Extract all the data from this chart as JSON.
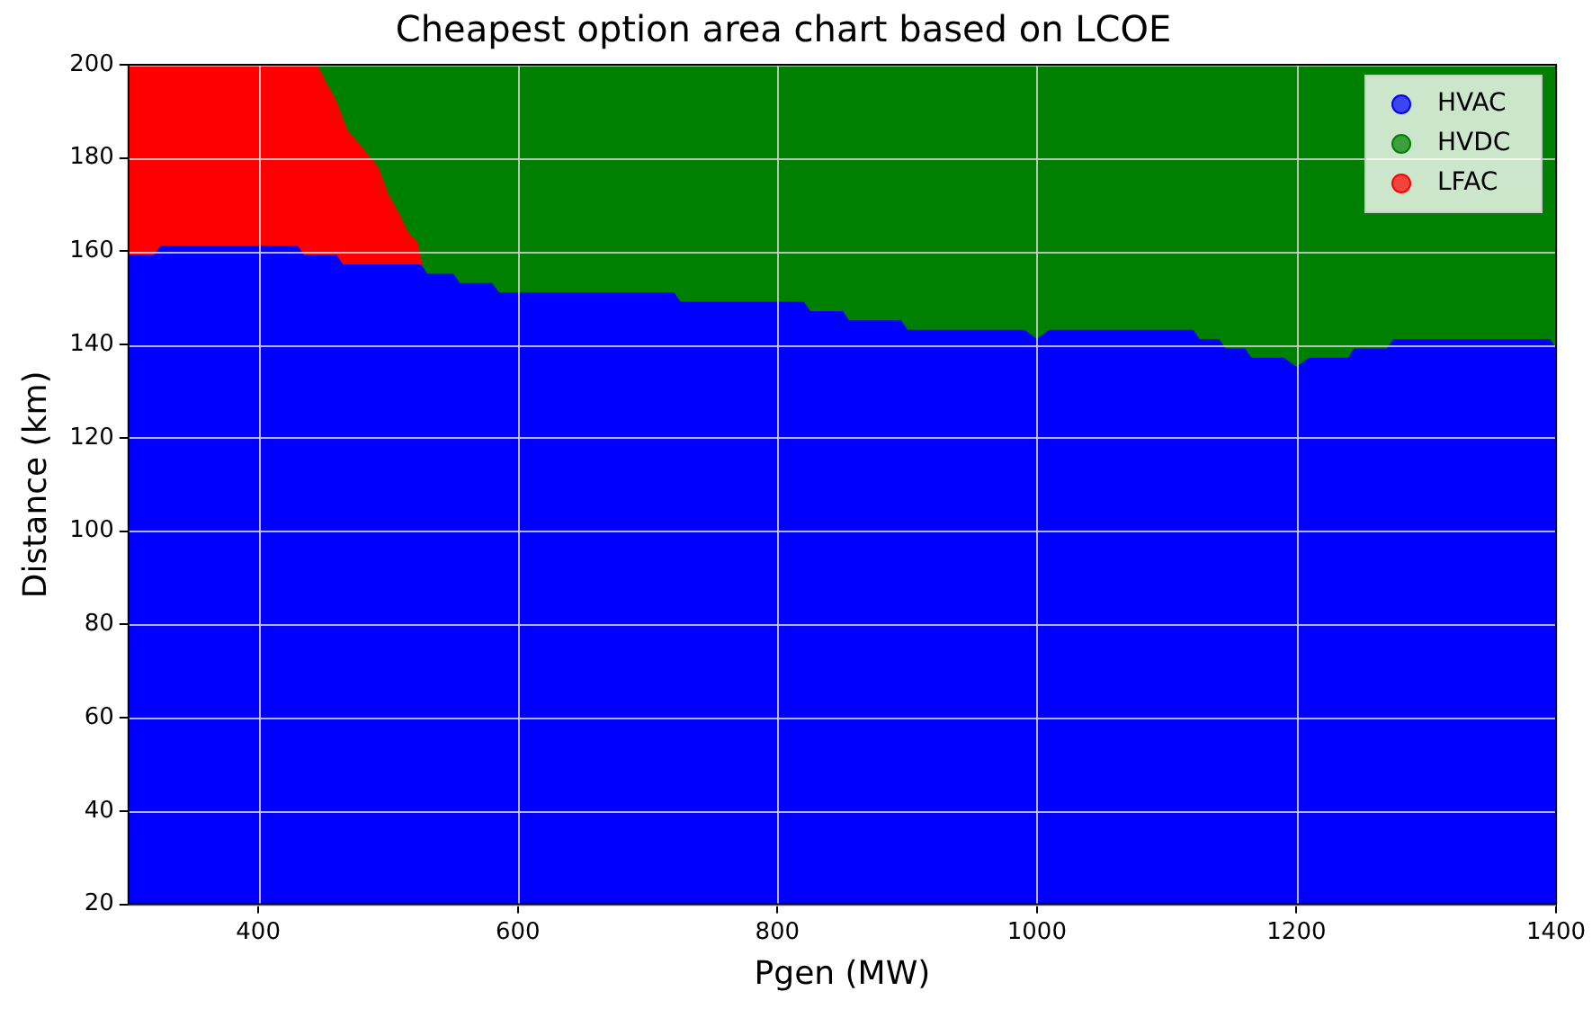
{
  "chart_data": {
    "type": "area",
    "title": "Cheapest option area chart based on LCOE",
    "xlabel": "Pgen (MW)",
    "ylabel": "Distance (km)",
    "xlim": [
      300,
      1400
    ],
    "xticks": [
      400,
      600,
      800,
      1000,
      1200,
      1400
    ],
    "ylim": [
      20,
      200
    ],
    "yticks": [
      20,
      40,
      60,
      80,
      100,
      120,
      140,
      160,
      180,
      200
    ],
    "grid": true,
    "legend": "top right",
    "series": [
      {
        "name": "HVAC",
        "color": "#0000ff",
        "x": [
          300,
          320,
          325,
          430,
          435,
          460,
          465,
          525,
          530,
          550,
          555,
          580,
          585,
          720,
          725,
          820,
          825,
          850,
          855,
          895,
          900,
          990,
          1000,
          1010,
          1120,
          1125,
          1140,
          1145,
          1160,
          1165,
          1190,
          1200,
          1210,
          1240,
          1245,
          1270,
          1275,
          1395,
          1400
        ],
        "values": [
          159,
          159,
          161,
          161,
          159,
          159,
          157,
          157,
          155,
          155,
          153,
          153,
          151,
          151,
          149,
          149,
          147,
          147,
          145,
          145,
          143,
          143,
          141,
          143,
          143,
          141,
          141,
          139,
          139,
          137,
          137,
          135,
          137,
          137,
          139,
          139,
          141,
          141,
          139
        ]
      },
      {
        "name": "HVDC",
        "color": "#008000",
        "x": [
          300,
          1400
        ],
        "values": [
          200,
          200
        ]
      },
      {
        "name": "LFAC",
        "color": "#ff0000",
        "x": [
          300,
          445,
          452,
          460,
          468,
          480,
          492,
          500,
          508,
          515,
          522,
          526
        ],
        "values": [
          200,
          200,
          196,
          192,
          186,
          182,
          178,
          172,
          168,
          164,
          162,
          157
        ]
      }
    ]
  }
}
